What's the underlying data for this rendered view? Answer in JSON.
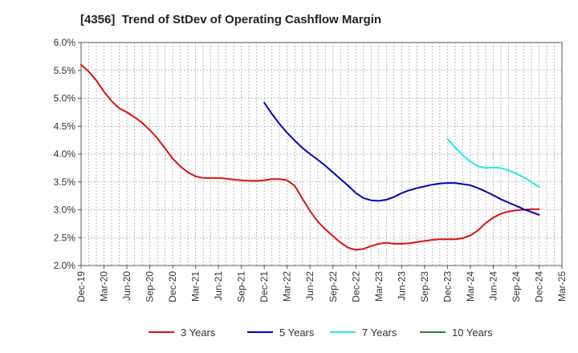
{
  "chart_data": {
    "type": "line",
    "title": "[4356]  Trend of StDev of Operating Cashflow Margin",
    "xlabel": "",
    "ylabel": "",
    "x_ticks": [
      "Dec-19",
      "Mar-20",
      "Jun-20",
      "Sep-20",
      "Dec-20",
      "Mar-21",
      "Jun-21",
      "Sep-21",
      "Dec-21",
      "Mar-22",
      "Jun-22",
      "Sep-22",
      "Dec-22",
      "Mar-23",
      "Jun-23",
      "Sep-23",
      "Dec-23",
      "Mar-24",
      "Jun-24",
      "Sep-24",
      "Dec-24",
      "Mar-25"
    ],
    "y_ticks": [
      2.0,
      2.5,
      3.0,
      3.5,
      4.0,
      4.5,
      5.0,
      5.5,
      6.0
    ],
    "ylim": [
      2.0,
      6.0
    ],
    "y_unit": "%",
    "grid": true,
    "legend_position": "bottom",
    "series": [
      {
        "name": "3 Years",
        "color": "#dd1111",
        "values": [
          [
            "Dec-19",
            5.6
          ],
          [
            "Jan-20",
            5.48
          ],
          [
            "Feb-20",
            5.32
          ],
          [
            "Mar-20",
            5.12
          ],
          [
            "Apr-20",
            4.95
          ],
          [
            "May-20",
            4.82
          ],
          [
            "Jun-20",
            4.75
          ],
          [
            "Jul-20",
            4.66
          ],
          [
            "Aug-20",
            4.56
          ],
          [
            "Sep-20",
            4.43
          ],
          [
            "Oct-20",
            4.28
          ],
          [
            "Nov-20",
            4.1
          ],
          [
            "Dec-20",
            3.92
          ],
          [
            "Jan-21",
            3.78
          ],
          [
            "Feb-21",
            3.67
          ],
          [
            "Mar-21",
            3.6
          ],
          [
            "Apr-21",
            3.57
          ],
          [
            "May-21",
            3.57
          ],
          [
            "Jun-21",
            3.57
          ],
          [
            "Jul-21",
            3.56
          ],
          [
            "Aug-21",
            3.54
          ],
          [
            "Sep-21",
            3.53
          ],
          [
            "Oct-21",
            3.52
          ],
          [
            "Nov-21",
            3.52
          ],
          [
            "Dec-21",
            3.53
          ],
          [
            "Jan-22",
            3.55
          ],
          [
            "Feb-22",
            3.55
          ],
          [
            "Mar-22",
            3.53
          ],
          [
            "Apr-22",
            3.43
          ],
          [
            "May-22",
            3.2
          ],
          [
            "Jun-22",
            2.98
          ],
          [
            "Jul-22",
            2.79
          ],
          [
            "Aug-22",
            2.65
          ],
          [
            "Sep-22",
            2.53
          ],
          [
            "Oct-22",
            2.41
          ],
          [
            "Nov-22",
            2.32
          ],
          [
            "Dec-22",
            2.28
          ],
          [
            "Jan-23",
            2.3
          ],
          [
            "Feb-23",
            2.35
          ],
          [
            "Mar-23",
            2.39
          ],
          [
            "Apr-23",
            2.41
          ],
          [
            "May-23",
            2.39
          ],
          [
            "Jun-23",
            2.39
          ],
          [
            "Jul-23",
            2.4
          ],
          [
            "Aug-23",
            2.42
          ],
          [
            "Sep-23",
            2.44
          ],
          [
            "Oct-23",
            2.46
          ],
          [
            "Nov-23",
            2.47
          ],
          [
            "Dec-23",
            2.47
          ],
          [
            "Jan-24",
            2.47
          ],
          [
            "Feb-24",
            2.49
          ],
          [
            "Mar-24",
            2.54
          ],
          [
            "Apr-24",
            2.63
          ],
          [
            "May-24",
            2.76
          ],
          [
            "Jun-24",
            2.86
          ],
          [
            "Jul-24",
            2.93
          ],
          [
            "Aug-24",
            2.97
          ],
          [
            "Sep-24",
            2.99
          ],
          [
            "Oct-24",
            3.0
          ],
          [
            "Nov-24",
            3.01
          ],
          [
            "Dec-24",
            3.01
          ]
        ]
      },
      {
        "name": "5 Years",
        "color": "#0000bb",
        "values": [
          [
            "Dec-21",
            4.92
          ],
          [
            "Jan-22",
            4.72
          ],
          [
            "Feb-22",
            4.54
          ],
          [
            "Mar-22",
            4.38
          ],
          [
            "Apr-22",
            4.24
          ],
          [
            "May-22",
            4.11
          ],
          [
            "Jun-22",
            4.0
          ],
          [
            "Jul-22",
            3.9
          ],
          [
            "Aug-22",
            3.79
          ],
          [
            "Sep-22",
            3.67
          ],
          [
            "Oct-22",
            3.55
          ],
          [
            "Nov-22",
            3.43
          ],
          [
            "Dec-22",
            3.3
          ],
          [
            "Jan-23",
            3.21
          ],
          [
            "Feb-23",
            3.17
          ],
          [
            "Mar-23",
            3.16
          ],
          [
            "Apr-23",
            3.18
          ],
          [
            "May-23",
            3.23
          ],
          [
            "Jun-23",
            3.3
          ],
          [
            "Jul-23",
            3.35
          ],
          [
            "Aug-23",
            3.39
          ],
          [
            "Sep-23",
            3.42
          ],
          [
            "Oct-23",
            3.45
          ],
          [
            "Nov-23",
            3.47
          ],
          [
            "Dec-23",
            3.48
          ],
          [
            "Jan-24",
            3.48
          ],
          [
            "Feb-24",
            3.46
          ],
          [
            "Mar-24",
            3.44
          ],
          [
            "Apr-24",
            3.39
          ],
          [
            "May-24",
            3.33
          ],
          [
            "Jun-24",
            3.26
          ],
          [
            "Jul-24",
            3.19
          ],
          [
            "Aug-24",
            3.13
          ],
          [
            "Sep-24",
            3.07
          ],
          [
            "Oct-24",
            3.01
          ],
          [
            "Nov-24",
            2.96
          ],
          [
            "Dec-24",
            2.91
          ]
        ]
      },
      {
        "name": "7 Years",
        "color": "#22e8e8",
        "values": [
          [
            "Dec-23",
            4.27
          ],
          [
            "Jan-24",
            4.12
          ],
          [
            "Feb-24",
            3.98
          ],
          [
            "Mar-24",
            3.86
          ],
          [
            "Apr-24",
            3.78
          ],
          [
            "May-24",
            3.75
          ],
          [
            "Jun-24",
            3.76
          ],
          [
            "Jul-24",
            3.75
          ],
          [
            "Aug-24",
            3.71
          ],
          [
            "Sep-24",
            3.65
          ],
          [
            "Oct-24",
            3.58
          ],
          [
            "Nov-24",
            3.5
          ],
          [
            "Dec-24",
            3.41
          ]
        ]
      },
      {
        "name": "10 Years",
        "color": "#228822",
        "values": []
      }
    ]
  }
}
